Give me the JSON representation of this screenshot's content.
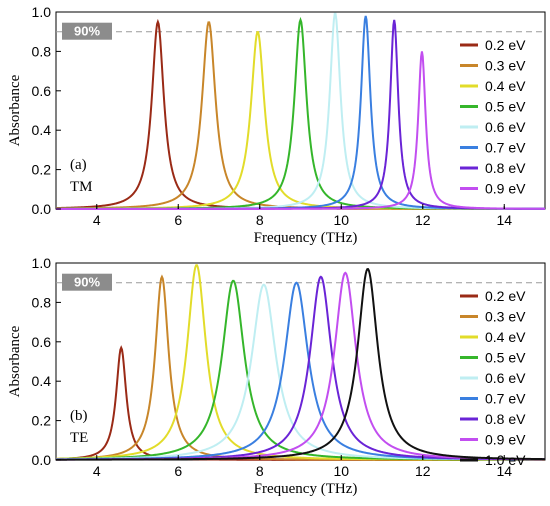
{
  "colors": {
    "0.2 eV": "#9a2a16",
    "0.3 eV": "#c8862a",
    "0.4 eV": "#e2dc2a",
    "0.5 eV": "#35b62b",
    "0.6 eV": "#bfeef2",
    "0.7 eV": "#3a7fe0",
    "0.8 eV": "#6a24d6",
    "0.9 eV": "#c24ef0",
    "1.0 eV": "#111111"
  },
  "chart_data": [
    {
      "type": "line",
      "panel": "(a)",
      "mode": "TM",
      "xlabel": "Frequency (THz)",
      "ylabel": "Absorbance",
      "xlim": [
        3,
        15
      ],
      "ylim": [
        0,
        1.0
      ],
      "xticks": [
        "4",
        "6",
        "8",
        "10",
        "12",
        "14"
      ],
      "yticks": [
        "0.0",
        "0.2",
        "0.4",
        "0.6",
        "0.8",
        "1.0"
      ],
      "reference_line": {
        "y": 0.9,
        "label": "90%"
      },
      "legend_position": "right",
      "series": [
        {
          "name": "0.2 eV",
          "peak_x": 5.5,
          "peak_y": 0.95,
          "width": 0.18
        },
        {
          "name": "0.3 eV",
          "peak_x": 6.75,
          "peak_y": 0.95,
          "width": 0.2
        },
        {
          "name": "0.4 eV",
          "peak_x": 7.95,
          "peak_y": 0.9,
          "width": 0.2
        },
        {
          "name": "0.5 eV",
          "peak_x": 9.0,
          "peak_y": 0.96,
          "width": 0.18
        },
        {
          "name": "0.6 eV",
          "peak_x": 9.85,
          "peak_y": 0.995,
          "width": 0.16
        },
        {
          "name": "0.7 eV",
          "peak_x": 10.6,
          "peak_y": 0.98,
          "width": 0.14
        },
        {
          "name": "0.8 eV",
          "peak_x": 11.3,
          "peak_y": 0.96,
          "width": 0.12
        },
        {
          "name": "0.9 eV",
          "peak_x": 11.98,
          "peak_y": 0.8,
          "width": 0.11
        }
      ]
    },
    {
      "type": "line",
      "panel": "(b)",
      "mode": "TE",
      "xlabel": "Frequency (THz)",
      "ylabel": "Absorbance",
      "xlim": [
        3,
        15
      ],
      "ylim": [
        0,
        1.0
      ],
      "xticks": [
        "4",
        "6",
        "8",
        "10",
        "12",
        "14"
      ],
      "yticks": [
        "0.0",
        "0.2",
        "0.4",
        "0.6",
        "0.8",
        "1.0"
      ],
      "reference_line": {
        "y": 0.9,
        "label": "90%"
      },
      "legend_position": "right",
      "series": [
        {
          "name": "0.2 eV",
          "peak_x": 4.6,
          "peak_y": 0.57,
          "width": 0.15
        },
        {
          "name": "0.3 eV",
          "peak_x": 5.6,
          "peak_y": 0.93,
          "width": 0.2
        },
        {
          "name": "0.4 eV",
          "peak_x": 6.45,
          "peak_y": 0.99,
          "width": 0.28
        },
        {
          "name": "0.5 eV",
          "peak_x": 7.35,
          "peak_y": 0.91,
          "width": 0.33
        },
        {
          "name": "0.6 eV",
          "peak_x": 8.1,
          "peak_y": 0.89,
          "width": 0.36
        },
        {
          "name": "0.7 eV",
          "peak_x": 8.9,
          "peak_y": 0.9,
          "width": 0.35
        },
        {
          "name": "0.8 eV",
          "peak_x": 9.5,
          "peak_y": 0.93,
          "width": 0.32
        },
        {
          "name": "0.9 eV",
          "peak_x": 10.1,
          "peak_y": 0.95,
          "width": 0.32
        },
        {
          "name": "1.0 eV",
          "peak_x": 10.65,
          "peak_y": 0.97,
          "width": 0.3
        }
      ]
    }
  ]
}
